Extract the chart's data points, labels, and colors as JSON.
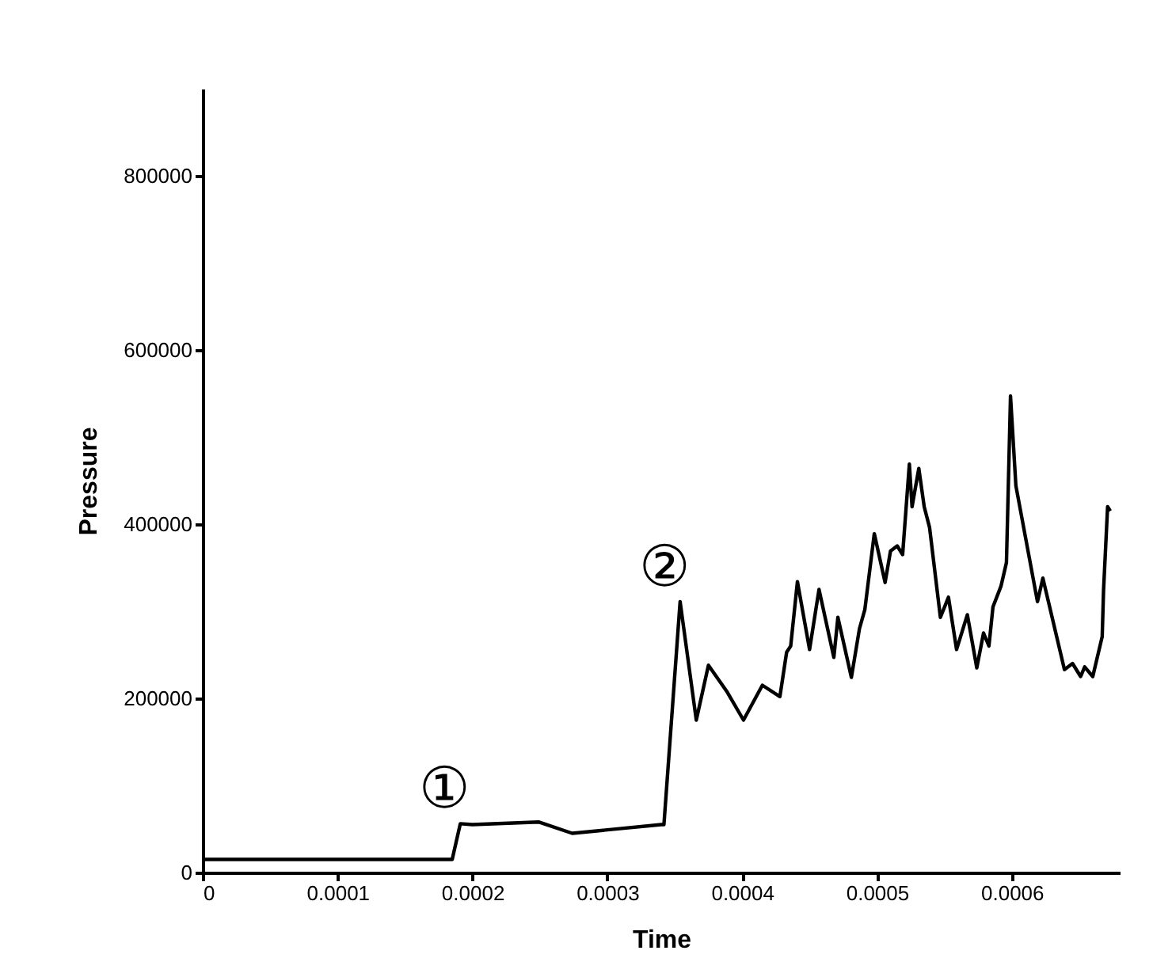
{
  "chart_data": {
    "type": "line",
    "xlabel": "Time",
    "ylabel": "Pressure",
    "xlim": [
      0,
      0.00068
    ],
    "ylim": [
      0,
      900000
    ],
    "xticks": [
      0,
      0.0001,
      0.0002,
      0.0003,
      0.0004,
      0.0005,
      0.0006
    ],
    "yticks": [
      0,
      200000,
      400000,
      600000,
      800000
    ],
    "grid": false,
    "marker": "none",
    "line_style": "solid",
    "annotations": [
      {
        "text": "①",
        "x": 0.000191,
        "y": 56000
      },
      {
        "text": "②",
        "x": 0.000354,
        "y": 311000
      }
    ],
    "series": [
      {
        "color": "#000000",
        "x": [
          0,
          0.000185,
          0.000191,
          0.0002,
          0.000249,
          0.000274,
          0.00034,
          0.000342,
          0.000354,
          0.000366,
          0.000375,
          0.000389,
          0.000401,
          0.000415,
          0.000428,
          0.000433,
          0.000436,
          0.000441,
          0.00045,
          0.000457,
          0.000468,
          0.000471,
          0.000481,
          0.000487,
          0.000491,
          0.000498,
          0.000506,
          0.00051,
          0.000515,
          0.000519,
          0.000524,
          0.000526,
          0.000531,
          0.000535,
          0.000539,
          0.000547,
          0.000553,
          0.000559,
          0.000567,
          0.000574,
          0.000579,
          0.000583,
          0.000586,
          0.000592,
          0.000596,
          0.000599,
          0.000603,
          0.000619,
          0.000623,
          0.000639,
          0.000645,
          0.000651,
          0.000654,
          0.00066,
          0.000667,
          0.000668,
          0.000671,
          0.000673
        ],
        "values": [
          15000,
          15000,
          56000,
          55000,
          58000,
          45000,
          55000,
          55000,
          311000,
          175000,
          238000,
          207000,
          175000,
          215000,
          202000,
          253000,
          260000,
          334000,
          256000,
          325000,
          247000,
          293000,
          224000,
          280000,
          302000,
          389000,
          333000,
          369000,
          375000,
          365000,
          469000,
          420000,
          464000,
          420000,
          396000,
          293000,
          316000,
          256000,
          296000,
          235000,
          275000,
          260000,
          305000,
          329000,
          356000,
          547000,
          444000,
          311000,
          338000,
          233000,
          240000,
          225000,
          236000,
          225000,
          271000,
          324000,
          420000,
          415000
        ]
      }
    ]
  }
}
